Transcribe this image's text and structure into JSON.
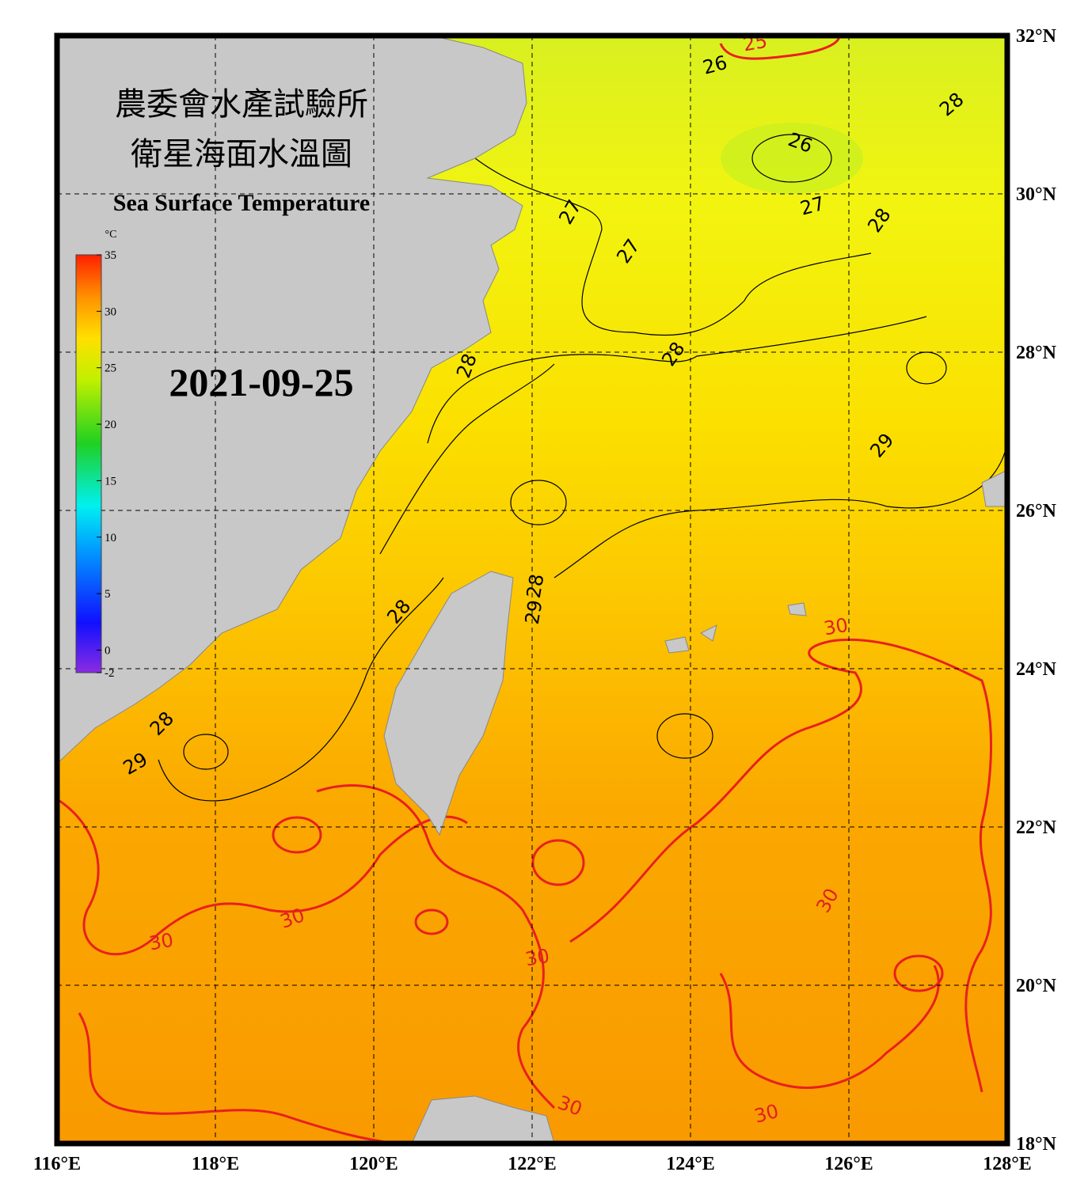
{
  "header": {
    "title_zh_1": "農委會水產試驗所",
    "title_zh_2": "衛星海面水溫圖",
    "title_en": "Sea Surface Temperature",
    "date": "2021-09-25"
  },
  "colorbar": {
    "unit": "°C",
    "range": [
      -2,
      35
    ],
    "ticks": [
      35,
      30,
      25,
      20,
      15,
      10,
      5,
      0,
      -2
    ]
  },
  "axes": {
    "lon": {
      "range": [
        116,
        128
      ],
      "ticks": [
        {
          "value": 116,
          "label": "116°E"
        },
        {
          "value": 118,
          "label": "118°E"
        },
        {
          "value": 120,
          "label": "120°E"
        },
        {
          "value": 122,
          "label": "122°E"
        },
        {
          "value": 124,
          "label": "124°E"
        },
        {
          "value": 126,
          "label": "126°E"
        },
        {
          "value": 128,
          "label": "128°E"
        }
      ]
    },
    "lat": {
      "range": [
        18,
        32
      ],
      "ticks": [
        {
          "value": 18,
          "label": "18°N"
        },
        {
          "value": 20,
          "label": "20°N"
        },
        {
          "value": 22,
          "label": "22°N"
        },
        {
          "value": 24,
          "label": "24°N"
        },
        {
          "value": 26,
          "label": "26°N"
        },
        {
          "value": 28,
          "label": "28°N"
        },
        {
          "value": 30,
          "label": "30°N"
        },
        {
          "value": 32,
          "label": "32°N"
        }
      ]
    }
  },
  "contour_labels": [
    {
      "value": 25,
      "color": "#e02020"
    },
    {
      "value": 26,
      "color": "#000000"
    },
    {
      "value": 26,
      "color": "#000000"
    },
    {
      "value": 27,
      "color": "#000000"
    },
    {
      "value": 27,
      "color": "#000000"
    },
    {
      "value": 27,
      "color": "#000000"
    },
    {
      "value": 28,
      "color": "#000000"
    },
    {
      "value": 28,
      "color": "#000000"
    },
    {
      "value": 28,
      "color": "#000000"
    },
    {
      "value": 28,
      "color": "#000000"
    },
    {
      "value": 28,
      "color": "#000000"
    },
    {
      "value": 28,
      "color": "#000000"
    },
    {
      "value": 28,
      "color": "#000000"
    },
    {
      "value": 29,
      "color": "#000000"
    },
    {
      "value": 29,
      "color": "#000000"
    },
    {
      "value": 29,
      "color": "#000000"
    },
    {
      "value": 30,
      "color": "#e02020"
    },
    {
      "value": 30,
      "color": "#e02020"
    },
    {
      "value": 30,
      "color": "#e02020"
    },
    {
      "value": 30,
      "color": "#e02020"
    },
    {
      "value": 30,
      "color": "#e02020"
    },
    {
      "value": 30,
      "color": "#e02020"
    },
    {
      "value": 30,
      "color": "#e02020"
    }
  ]
}
